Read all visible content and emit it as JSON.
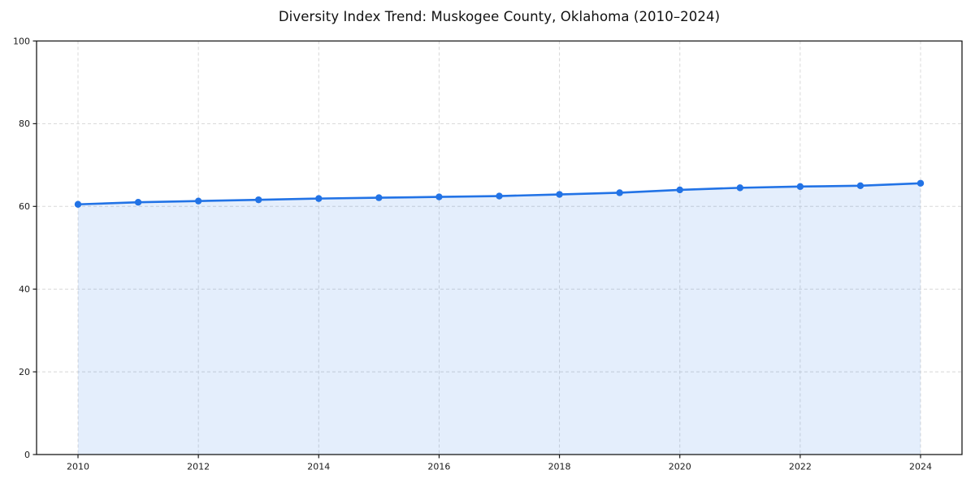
{
  "chart_data": {
    "type": "area",
    "title": "Diversity Index Trend: Muskogee County, Oklahoma (2010–2024)",
    "xlabel": "",
    "ylabel": "",
    "x": [
      2010,
      2011,
      2012,
      2013,
      2014,
      2015,
      2016,
      2017,
      2018,
      2019,
      2020,
      2021,
      2022,
      2023,
      2024
    ],
    "series": [
      {
        "name": "Diversity Index",
        "values": [
          60.5,
          61.0,
          61.3,
          61.6,
          61.9,
          62.1,
          62.3,
          62.5,
          62.9,
          63.3,
          64.0,
          64.5,
          64.8,
          65.0,
          65.6
        ]
      }
    ],
    "ylim": [
      0,
      100
    ],
    "yticks": [
      0,
      20,
      40,
      60,
      80,
      100
    ],
    "xticks": [
      2010,
      2012,
      2014,
      2016,
      2018,
      2020,
      2022,
      2024
    ],
    "grid": true,
    "grid_style": "dashed",
    "legend": "none",
    "marker": "circle",
    "colors": {
      "line": "#2273e6",
      "marker": "#2273e6",
      "fill": "#2273e6",
      "fill_opacity": 0.12,
      "grid": "#d8d8d8",
      "axis": "#1a1a1a",
      "tick_text": "#1a1a1a",
      "background": "#ffffff"
    }
  }
}
